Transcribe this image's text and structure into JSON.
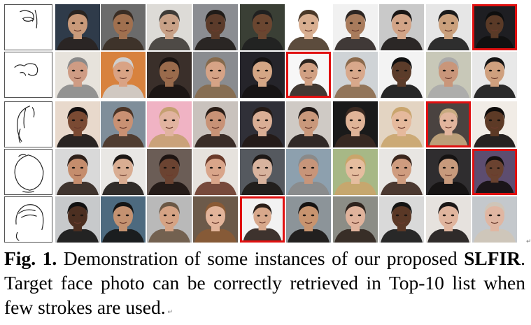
{
  "caption": {
    "fig_label": "Fig. 1.",
    "text_before": " Demonstration of some instances of our proposed ",
    "method_name": "SLFIR",
    "text_after": ". Target face photo can be correctly retrieved in Top-10 list when few strokes are used."
  },
  "grid": {
    "rows": [
      {
        "sketch": "partial-sketch-eye",
        "photos": 10,
        "target_index": 9
      },
      {
        "sketch": "partial-sketch-nose",
        "photos": 10,
        "target_index": 5
      },
      {
        "sketch": "partial-sketch-hair-contour",
        "photos": 10,
        "target_index": 8
      },
      {
        "sketch": "partial-sketch-face-outline",
        "photos": 10,
        "target_index": 9
      },
      {
        "sketch": "partial-sketch-hair",
        "photos": 10,
        "target_index": 4
      }
    ],
    "highlight_color": "#e01010"
  },
  "photo_palettes": [
    [
      [
        "#2f3b4a",
        "#c99a7a",
        "#2a2420"
      ],
      [
        "#6b6b6b",
        "#a0704f",
        "#3a2d24"
      ],
      [
        "#dddbd7",
        "#c8a187",
        "#3e3a36"
      ],
      [
        "#8b8d92",
        "#5b3b2a",
        "#1f1b18"
      ],
      [
        "#3a3f35",
        "#6a4630",
        "#202020"
      ],
      [
        "#ffffff",
        "#d8ae90",
        "#4a3828"
      ],
      [
        "#f1f1f1",
        "#a87b5c",
        "#2c2522"
      ],
      [
        "#c9c9c9",
        "#d2a487",
        "#191514"
      ],
      [
        "#e6e6e6",
        "#caa07c",
        "#1a1a1a"
      ],
      [
        "#1e1e22",
        "#5a3a27",
        "#0e0e0e"
      ]
    ],
    [
      [
        "#e7e3dc",
        "#cf9c84",
        "#8a8a8a"
      ],
      [
        "#d8823e",
        "#d9a385",
        "#cfcfcf"
      ],
      [
        "#3a2f2a",
        "#9a6b4c",
        "#1a1412"
      ],
      [
        "#8a8c90",
        "#d6a386",
        "#866a4c"
      ],
      [
        "#25242a",
        "#d4a685",
        "#161313"
      ],
      [
        "#f7f7f7",
        "#d1a083",
        "#2d231d"
      ],
      [
        "#cfd3d6",
        "#d8a88b",
        "#8b6a4c"
      ],
      [
        "#f3f3f3",
        "#5b3c2a",
        "#111111"
      ],
      [
        "#c8c8b8",
        "#c9967a",
        "#aaaaaa"
      ],
      [
        "#e8e8e8",
        "#cfa07e",
        "#151515"
      ]
    ],
    [
      [
        "#e8d9cc",
        "#7a4a33",
        "#141010"
      ],
      [
        "#7f8e9a",
        "#c99173",
        "#4b3426"
      ],
      [
        "#f0b3c4",
        "#e1b39f",
        "#c5a072"
      ],
      [
        "#c9c2bd",
        "#c89276",
        "#2a1d17"
      ],
      [
        "#303038",
        "#d9ae95",
        "#241a16"
      ],
      [
        "#cfcac5",
        "#c9987b",
        "#1e1715"
      ],
      [
        "#1a1a1a",
        "#e0b498",
        "#3b2a22"
      ],
      [
        "#e3d4c2",
        "#e5b99c",
        "#c9a56e"
      ],
      [
        "#4a4340",
        "#e2b59d",
        "#c8aa80"
      ],
      [
        "#f1ece6",
        "#5d3a26",
        "#0f0c0b"
      ]
    ],
    [
      [
        "#d9d9d9",
        "#c58d6d",
        "#2e211b"
      ],
      [
        "#e9e7e4",
        "#d9ad92",
        "#1c1714"
      ],
      [
        "#6b5d56",
        "#6b4331",
        "#1d1412"
      ],
      [
        "#e6e2dd",
        "#d9a58a",
        "#6a3a2a"
      ],
      [
        "#55595f",
        "#d8b39e",
        "#1d1816"
      ],
      [
        "#8da0ae",
        "#c7957a",
        "#8a8a8a"
      ],
      [
        "#a7b886",
        "#e5bd9f",
        "#caa56b"
      ],
      [
        "#e8e6e3",
        "#cf9c7f",
        "#3a261d"
      ],
      [
        "#2f2d2f",
        "#c79a7c",
        "#141212"
      ],
      [
        "#5d4d70",
        "#6a4230",
        "#141010"
      ]
    ],
    [
      [
        "#c7c9cb",
        "#4c2f21",
        "#111111"
      ],
      [
        "#4d6a7f",
        "#c49271",
        "#151515"
      ],
      [
        "#b9b9b9",
        "#d5a384",
        "#6b5845"
      ],
      [
        "#6c5a4a",
        "#e2b49a",
        "#8a5a35"
      ],
      [
        "#f2f2f2",
        "#d8a88b",
        "#2a1e18"
      ],
      [
        "#8c9499",
        "#c8946f",
        "#161312"
      ],
      [
        "#8c8d86",
        "#e0b39c",
        "#2f231d"
      ],
      [
        "#d9d9d9",
        "#5a3826",
        "#141414"
      ],
      [
        "#e6e2de",
        "#e0b59e",
        "#1b1716"
      ],
      [
        "#c4c8cc",
        "#e0b6a2",
        "#cfc5b8"
      ]
    ]
  ]
}
